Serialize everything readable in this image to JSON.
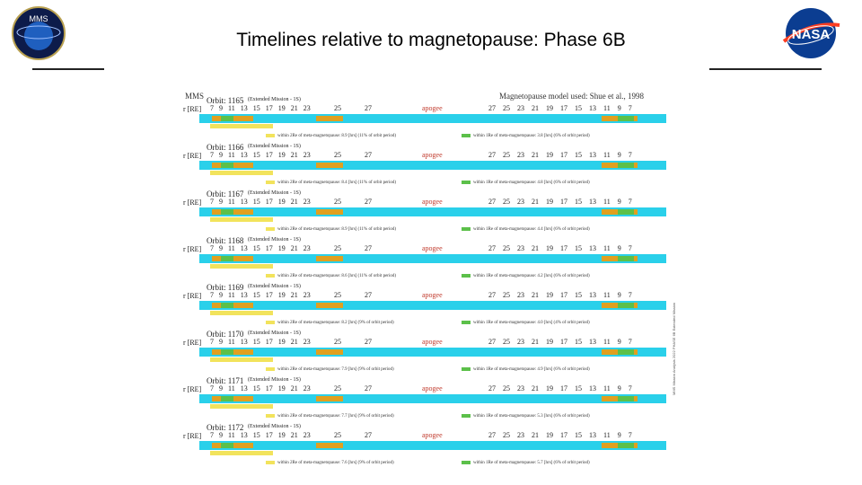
{
  "slide": {
    "title": "Timelines relative to magnetopause: Phase 6B"
  },
  "logos": {
    "left": "MMS",
    "right": "NASA"
  },
  "figure": {
    "header_left": "MMS",
    "header_right": "Magnetopause model used: Shue et al., 1998",
    "re_label": "r [RE]",
    "apogee_label": "apogee",
    "orbits": [
      {
        "title": "Orbit: 1165",
        "mission": "(Extended Mission - 1S)",
        "ticks_left": "7 9 11 13 15 17 19 21 23",
        "ticks_mid": "25 27",
        "ticks_right": "27 25 23 21 19 17 15 13 11 9 7",
        "inbound": "within 2Re of meta-magnetopause: 8.9 [hrs] (11% of orbit period)",
        "outbound": "within 1Re of meta-magnetopause: 3.8 [hrs] (6% of orbit period)"
      },
      {
        "title": "Orbit: 1166",
        "mission": "(Extended Mission - 1S)",
        "ticks_left": "7 9 11 13 15 17 19 21 23",
        "ticks_mid": "25 27",
        "ticks_right": "27 25 23 21 19 17 15 13 11 9 7",
        "inbound": "within 2Re of meta-magnetopause: 8.4 [hrs] (11% of orbit period)",
        "outbound": "within 1Re of meta-magnetopause: 4.8 [hrs] (6% of orbit period)"
      },
      {
        "title": "Orbit: 1167",
        "mission": "(Extended Mission - 1S)",
        "ticks_left": "7 9 11 13 15 17 19 21 23",
        "ticks_mid": "25 27",
        "ticks_right": "27 25 23 21 19 17 15 13 11 9 7",
        "inbound": "within 2Re of meta-magnetopause: 8.9 [hrs] (11% of orbit period)",
        "outbound": "within 1Re of meta-magnetopause: 4.4 [hrs] (6% of orbit period)"
      },
      {
        "title": "Orbit: 1168",
        "mission": "(Extended Mission - 1S)",
        "ticks_left": "7 9 11 13 15 17 19 21 23",
        "ticks_mid": "25 27",
        "ticks_right": "27 25 23 21 19 17 15 13 11 9 7",
        "inbound": "within 2Re of meta-magnetopause: 8.6 [hrs] (11% of orbit period)",
        "outbound": "within 1Re of meta-magnetopause: 4.2 [hrs] (6% of orbit period)"
      },
      {
        "title": "Orbit: 1169",
        "mission": "(Extended Mission - 1S)",
        "ticks_left": "7 9 11 13 15 17 19 21 23",
        "ticks_mid": "25 27",
        "ticks_right": "27 25 23 21 19 17 15 13 11 9 7",
        "inbound": "within 2Re of meta-magnetopause: 8.2 [hrs] (9% of orbit period)",
        "outbound": "within 1Re of meta-magnetopause: 4.0 [hrs] (4% of orbit period)"
      },
      {
        "title": "Orbit: 1170",
        "mission": "(Extended Mission - 1S)",
        "ticks_left": "7 9 11 13 15 17 19 21 23",
        "ticks_mid": "25 27",
        "ticks_right": "27 25 23 21 19 17 15 13 11 9 7",
        "inbound": "within 2Re of meta-magnetopause: 7.9 [hrs] (9% of orbit period)",
        "outbound": "within 1Re of meta-magnetopause: 4.9 [hrs] (6% of orbit period)"
      },
      {
        "title": "Orbit: 1171",
        "mission": "(Extended Mission - 1S)",
        "ticks_left": "7 9 11 13 15 17 19 21 23",
        "ticks_mid": "25 27",
        "ticks_right": "27 25 23 21 19 17 15 13 11 9 7",
        "inbound": "within 2Re of meta-magnetopause: 7.7 [hrs] (9% of orbit period)",
        "outbound": "within 1Re of meta-magnetopause: 5.3 [hrs] (6% of orbit period)"
      },
      {
        "title": "Orbit: 1172",
        "mission": "(Extended Mission - 1S)",
        "ticks_left": "7 9 11 13 15 17 19 21 23",
        "ticks_mid": "25 27",
        "ticks_right": "27 25 23 21 19 17 15 13 11 9 7",
        "inbound": "within 2Re of meta-magnetopause: 7.6 [hrs] (9% of orbit period)",
        "outbound": "within 1Re of meta-magnetopause: 5.7 [hrs] (6% of orbit period)"
      }
    ],
    "side_note": "MMS Mission Analysis 2022 PHASE 6B Extended Mission"
  },
  "colors": {
    "bar": "#2ad0ea",
    "inbound": "#e0a020",
    "near": "#5cc04a",
    "apogee": "#c0392b"
  }
}
